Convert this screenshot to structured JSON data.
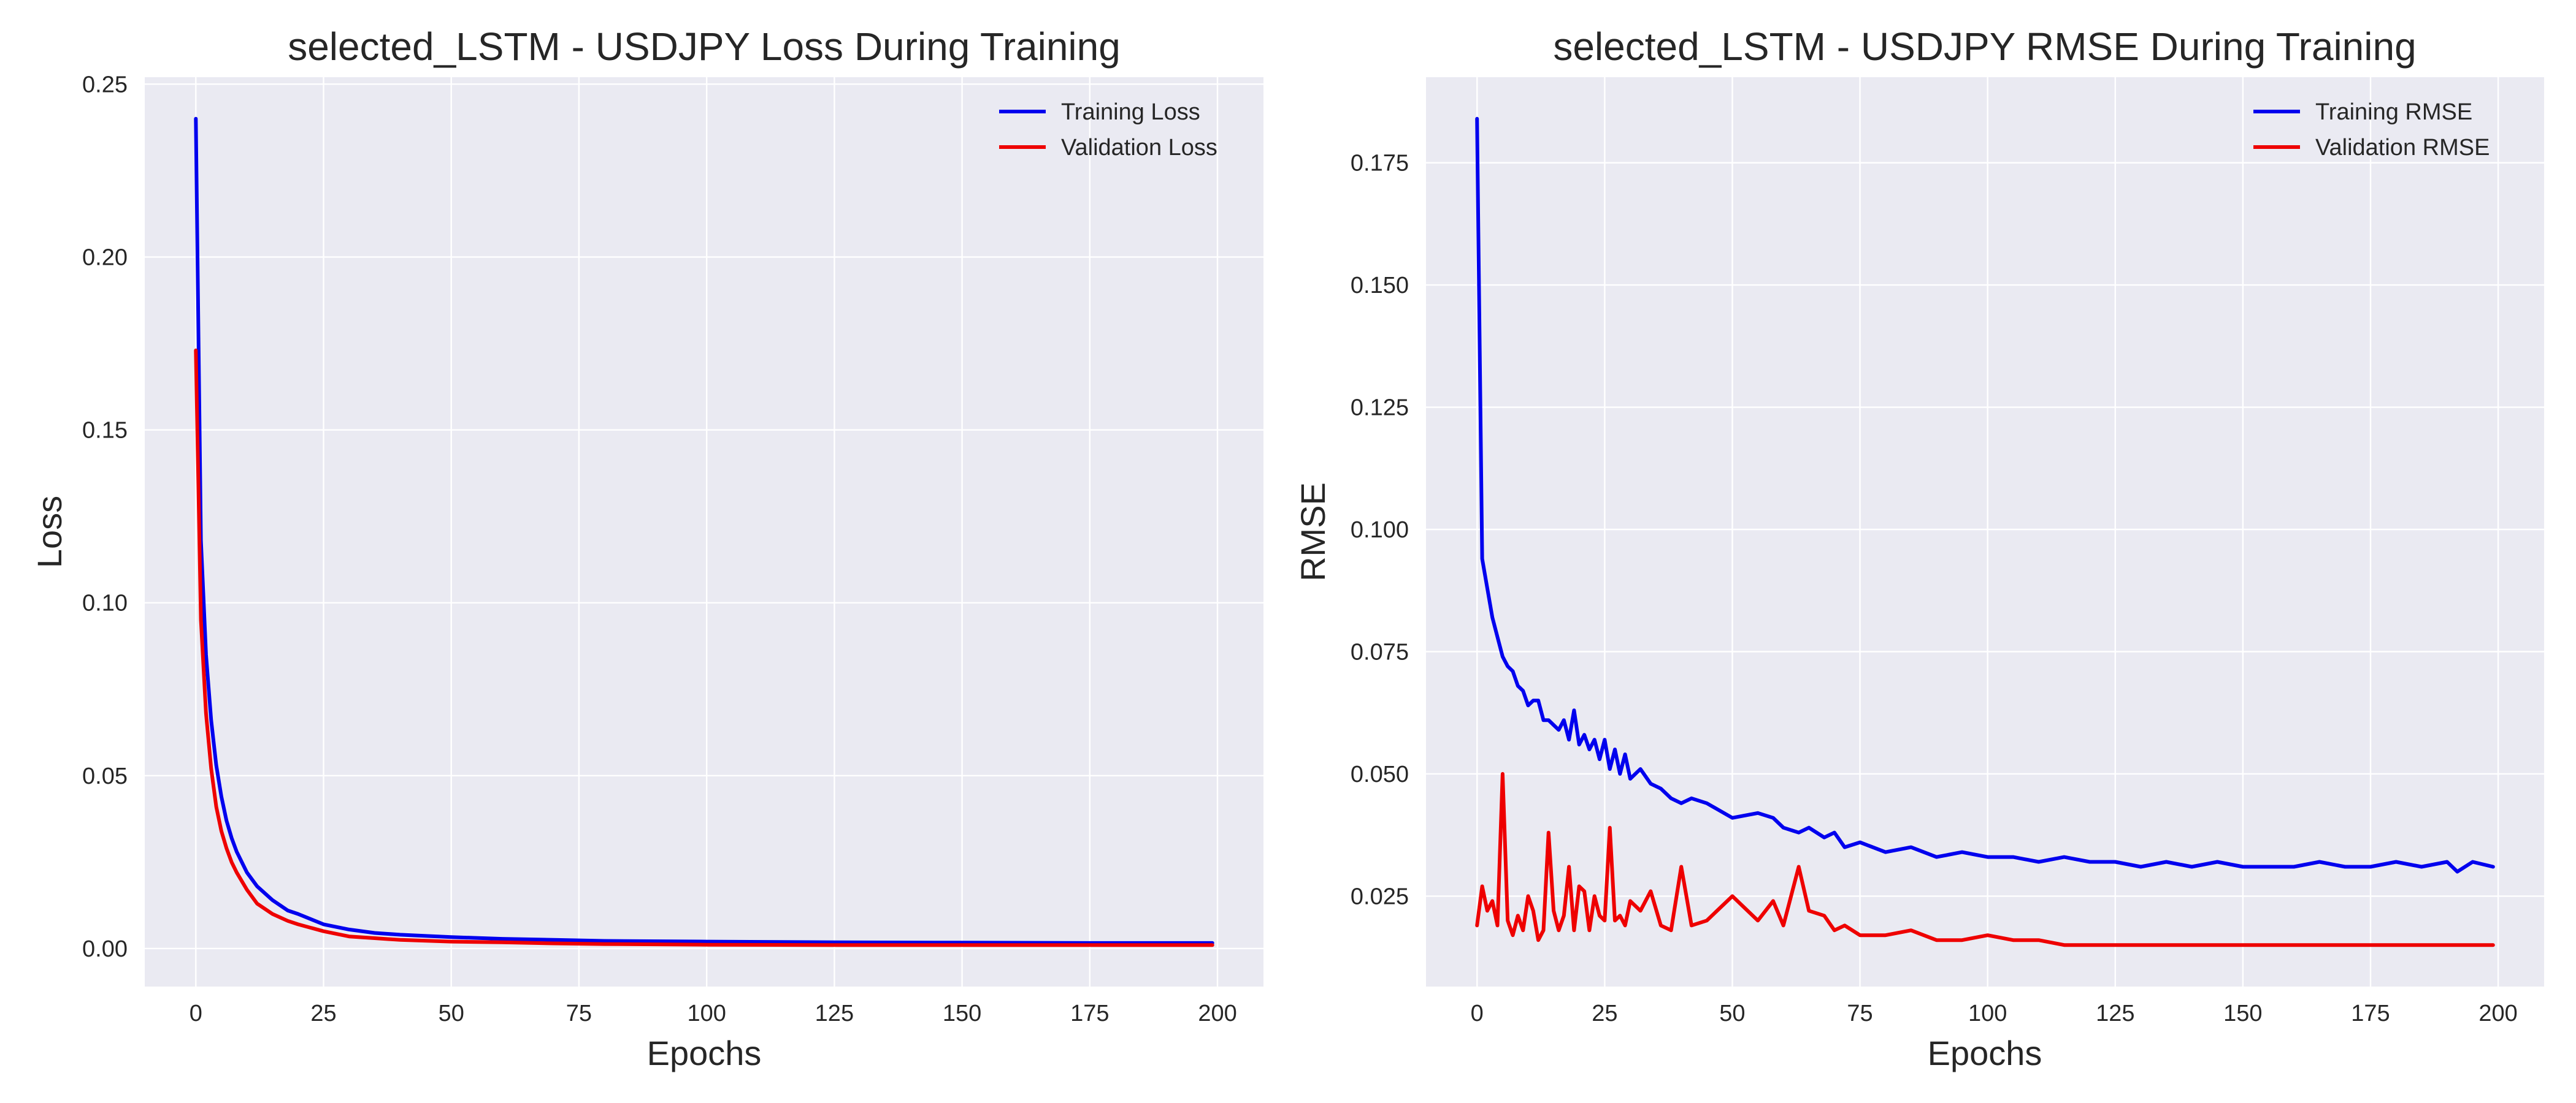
{
  "chart_data": [
    {
      "type": "line",
      "title": "selected_LSTM - USDJPY Loss During Training",
      "xlabel": "Epochs",
      "ylabel": "Loss",
      "xlim": [
        -10,
        209
      ],
      "ylim": [
        -0.011,
        0.252
      ],
      "xticks": [
        0,
        25,
        50,
        75,
        100,
        125,
        150,
        175,
        200
      ],
      "yticks": [
        0.0,
        0.05,
        0.1,
        0.15,
        0.2,
        0.25
      ],
      "ytick_labels": [
        "0.00",
        "0.05",
        "0.10",
        "0.15",
        "0.20",
        "0.25"
      ],
      "grid": true,
      "legend_position": "top-right",
      "x": [
        0,
        1,
        2,
        3,
        4,
        5,
        6,
        7,
        8,
        10,
        12,
        15,
        18,
        20,
        25,
        30,
        35,
        40,
        50,
        60,
        70,
        80,
        100,
        125,
        150,
        175,
        199
      ],
      "series": [
        {
          "name": "Training Loss",
          "color": "#0000ee",
          "values": [
            0.24,
            0.118,
            0.085,
            0.066,
            0.053,
            0.044,
            0.037,
            0.032,
            0.028,
            0.022,
            0.018,
            0.014,
            0.011,
            0.01,
            0.007,
            0.0055,
            0.0045,
            0.004,
            0.0033,
            0.0028,
            0.0025,
            0.0022,
            0.002,
            0.0018,
            0.0017,
            0.0016,
            0.0016
          ]
        },
        {
          "name": "Validation Loss",
          "color": "#ee0000",
          "values": [
            0.173,
            0.095,
            0.068,
            0.052,
            0.041,
            0.034,
            0.029,
            0.025,
            0.022,
            0.017,
            0.013,
            0.01,
            0.008,
            0.007,
            0.005,
            0.0035,
            0.003,
            0.0025,
            0.002,
            0.0018,
            0.0015,
            0.0013,
            0.0011,
            0.001,
            0.001,
            0.001,
            0.001
          ]
        }
      ]
    },
    {
      "type": "line",
      "title": "selected_LSTM - USDJPY RMSE During Training",
      "xlabel": "Epochs",
      "ylabel": "RMSE",
      "xlim": [
        -10,
        209
      ],
      "ylim": [
        0.0065,
        0.1925
      ],
      "xticks": [
        0,
        25,
        50,
        75,
        100,
        125,
        150,
        175,
        200
      ],
      "yticks": [
        0.025,
        0.05,
        0.075,
        0.1,
        0.125,
        0.15,
        0.175
      ],
      "ytick_labels": [
        "0.025",
        "0.050",
        "0.075",
        "0.100",
        "0.125",
        "0.150",
        "0.175"
      ],
      "grid": true,
      "legend_position": "top-right",
      "x": [
        0,
        1,
        2,
        3,
        4,
        5,
        6,
        7,
        8,
        9,
        10,
        11,
        12,
        13,
        14,
        15,
        16,
        17,
        18,
        19,
        20,
        21,
        22,
        23,
        24,
        25,
        26,
        27,
        28,
        29,
        30,
        32,
        34,
        36,
        38,
        40,
        42,
        45,
        50,
        55,
        58,
        60,
        63,
        65,
        68,
        70,
        72,
        75,
        80,
        85,
        90,
        95,
        100,
        105,
        110,
        115,
        120,
        125,
        130,
        135,
        140,
        145,
        150,
        155,
        160,
        165,
        170,
        175,
        180,
        185,
        190,
        192,
        195,
        199
      ],
      "series": [
        {
          "name": "Training RMSE",
          "color": "#0000ee",
          "values": [
            0.184,
            0.094,
            0.088,
            0.082,
            0.078,
            0.074,
            0.072,
            0.071,
            0.068,
            0.067,
            0.064,
            0.065,
            0.065,
            0.061,
            0.061,
            0.06,
            0.059,
            0.061,
            0.057,
            0.063,
            0.056,
            0.058,
            0.055,
            0.057,
            0.053,
            0.057,
            0.051,
            0.055,
            0.05,
            0.054,
            0.049,
            0.051,
            0.048,
            0.047,
            0.045,
            0.044,
            0.045,
            0.044,
            0.041,
            0.042,
            0.041,
            0.039,
            0.038,
            0.039,
            0.037,
            0.038,
            0.035,
            0.036,
            0.034,
            0.035,
            0.033,
            0.034,
            0.033,
            0.033,
            0.032,
            0.033,
            0.032,
            0.032,
            0.031,
            0.032,
            0.031,
            0.032,
            0.031,
            0.031,
            0.031,
            0.032,
            0.031,
            0.031,
            0.032,
            0.031,
            0.032,
            0.03,
            0.032,
            0.031
          ]
        },
        {
          "name": "Validation RMSE",
          "color": "#ee0000",
          "values": [
            0.019,
            0.027,
            0.022,
            0.024,
            0.019,
            0.05,
            0.02,
            0.017,
            0.021,
            0.018,
            0.025,
            0.022,
            0.016,
            0.018,
            0.038,
            0.022,
            0.018,
            0.021,
            0.031,
            0.018,
            0.027,
            0.026,
            0.018,
            0.025,
            0.021,
            0.02,
            0.039,
            0.02,
            0.021,
            0.019,
            0.024,
            0.022,
            0.026,
            0.019,
            0.018,
            0.031,
            0.019,
            0.02,
            0.025,
            0.02,
            0.024,
            0.019,
            0.031,
            0.022,
            0.021,
            0.018,
            0.019,
            0.017,
            0.017,
            0.018,
            0.016,
            0.016,
            0.017,
            0.016,
            0.016,
            0.015,
            0.015,
            0.015,
            0.015,
            0.015,
            0.015,
            0.015,
            0.015,
            0.015,
            0.015,
            0.015,
            0.015,
            0.015,
            0.015,
            0.015,
            0.015,
            0.015,
            0.015,
            0.015
          ]
        }
      ]
    }
  ]
}
